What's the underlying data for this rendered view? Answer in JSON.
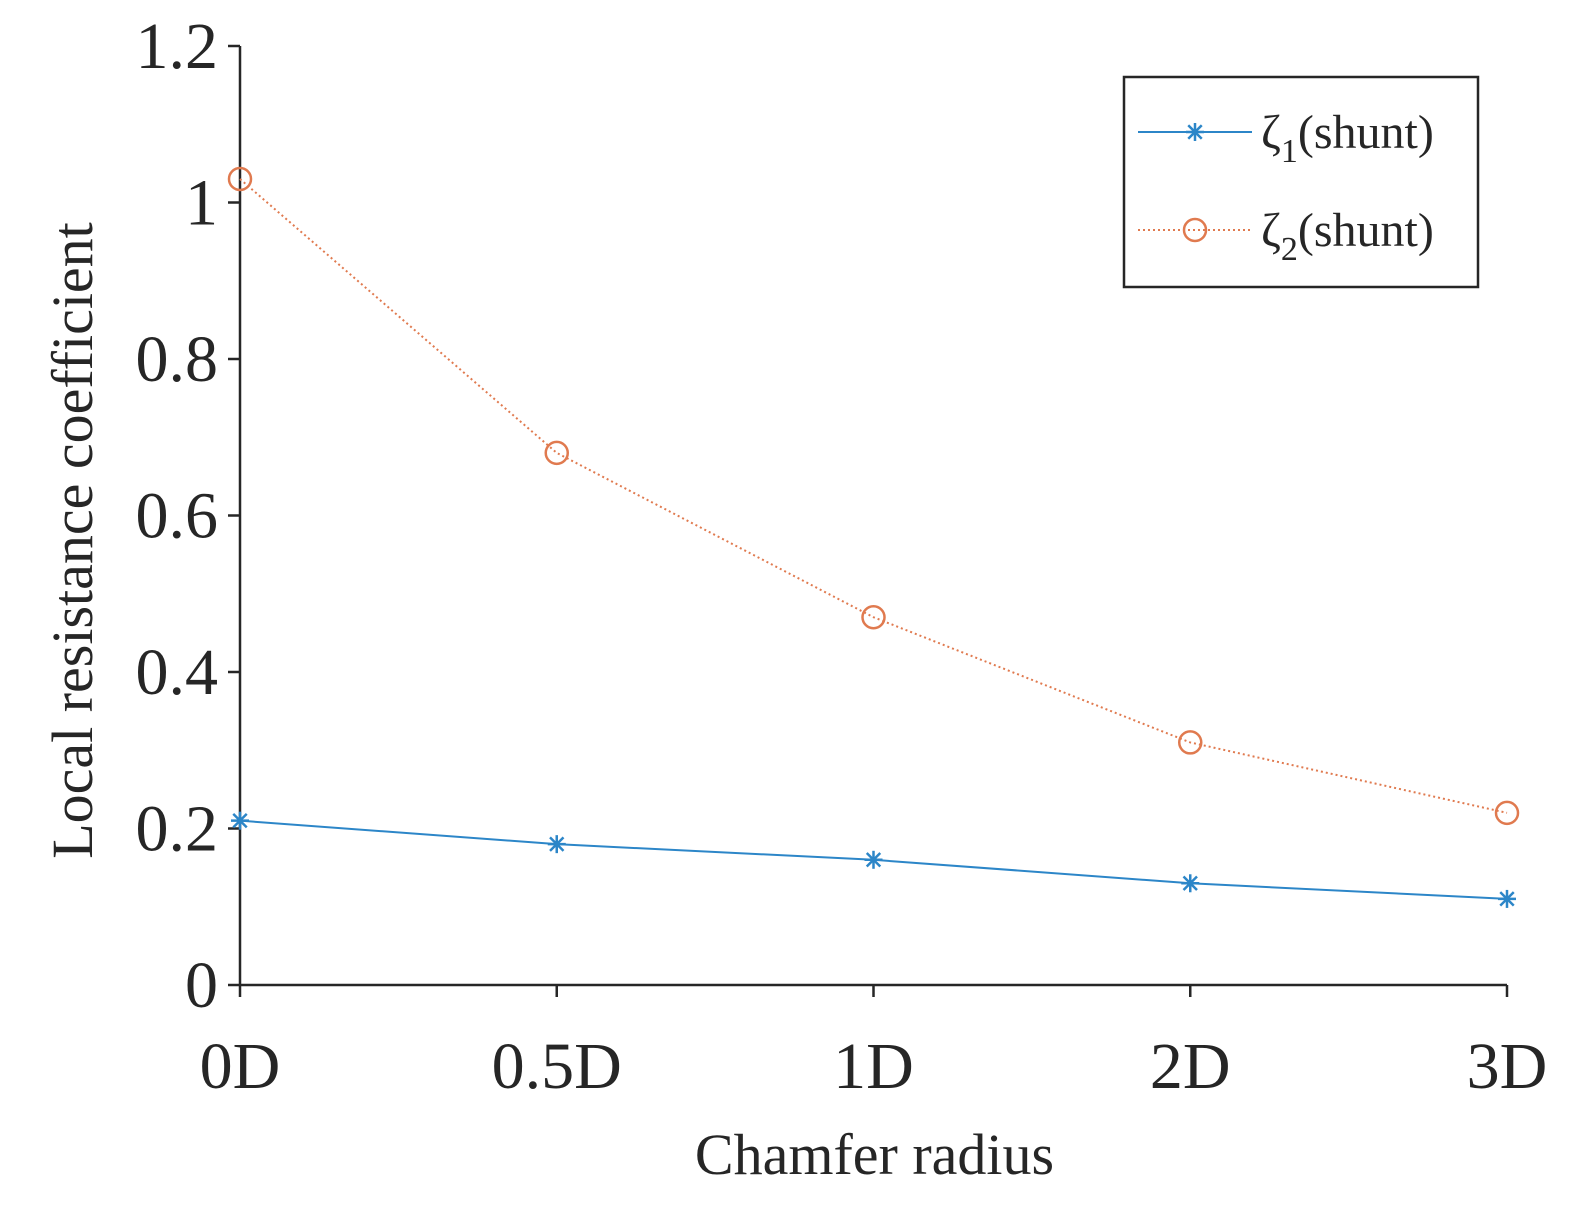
{
  "chart_data": {
    "type": "line",
    "title": "",
    "xlabel": "Chamfer radius",
    "ylabel": "Local resistance coefficient",
    "categories": [
      "0D",
      "0.5D",
      "1D",
      "2D",
      "3D"
    ],
    "ylim": [
      0,
      1.2
    ],
    "yticks": [
      0,
      0.2,
      0.4,
      0.6,
      0.8,
      1,
      1.2
    ],
    "ytick_labels": [
      "0",
      "0.2",
      "0.4",
      "0.6",
      "0.8",
      "1",
      "1.2"
    ],
    "grid": false,
    "legend_position": "top-right",
    "series": [
      {
        "name": "ζ1(shunt)",
        "legend_symbol": "ζ",
        "legend_subscript": "1",
        "legend_suffix": "(shunt)",
        "values": [
          0.21,
          0.18,
          0.16,
          0.13,
          0.11
        ],
        "color": "#2c86c8",
        "marker": "asterisk",
        "line_style": "solid"
      },
      {
        "name": "ζ2(shunt)",
        "legend_symbol": "ζ",
        "legend_subscript": "2",
        "legend_suffix": "(shunt)",
        "values": [
          1.03,
          0.68,
          0.47,
          0.31,
          0.22
        ],
        "color": "#e07a4f",
        "marker": "circle",
        "line_style": "dotted"
      }
    ]
  }
}
